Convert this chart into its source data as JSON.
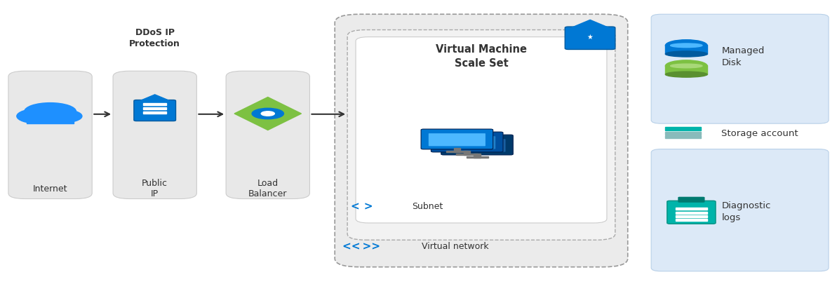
{
  "bg_color": "#ffffff",
  "arrow_color": "#333333",
  "box_color_gray": "#e8e8e8",
  "box_edge_gray": "#cccccc",
  "vnet_fill": "#ebebeb",
  "subnet_fill": "#f2f2f2",
  "vmss_fill": "#ffffff",
  "legend_blue_fill": "#dce9f7",
  "legend_blue_edge": "#b8d0e8",
  "ddos_label": "DDoS IP\nProtection",
  "internet_label": "Internet",
  "public_ip_label": "Public\nIP",
  "lb_label": "Load\nBalancer",
  "vmss_label": "Virtual Machine\nScale Set",
  "subnet_label": "Subnet",
  "vnet_label": "Virtual network",
  "managed_disk_label": "Managed\nDisk",
  "storage_label": "Storage account",
  "diag_label": "Diagnostic\nlogs"
}
